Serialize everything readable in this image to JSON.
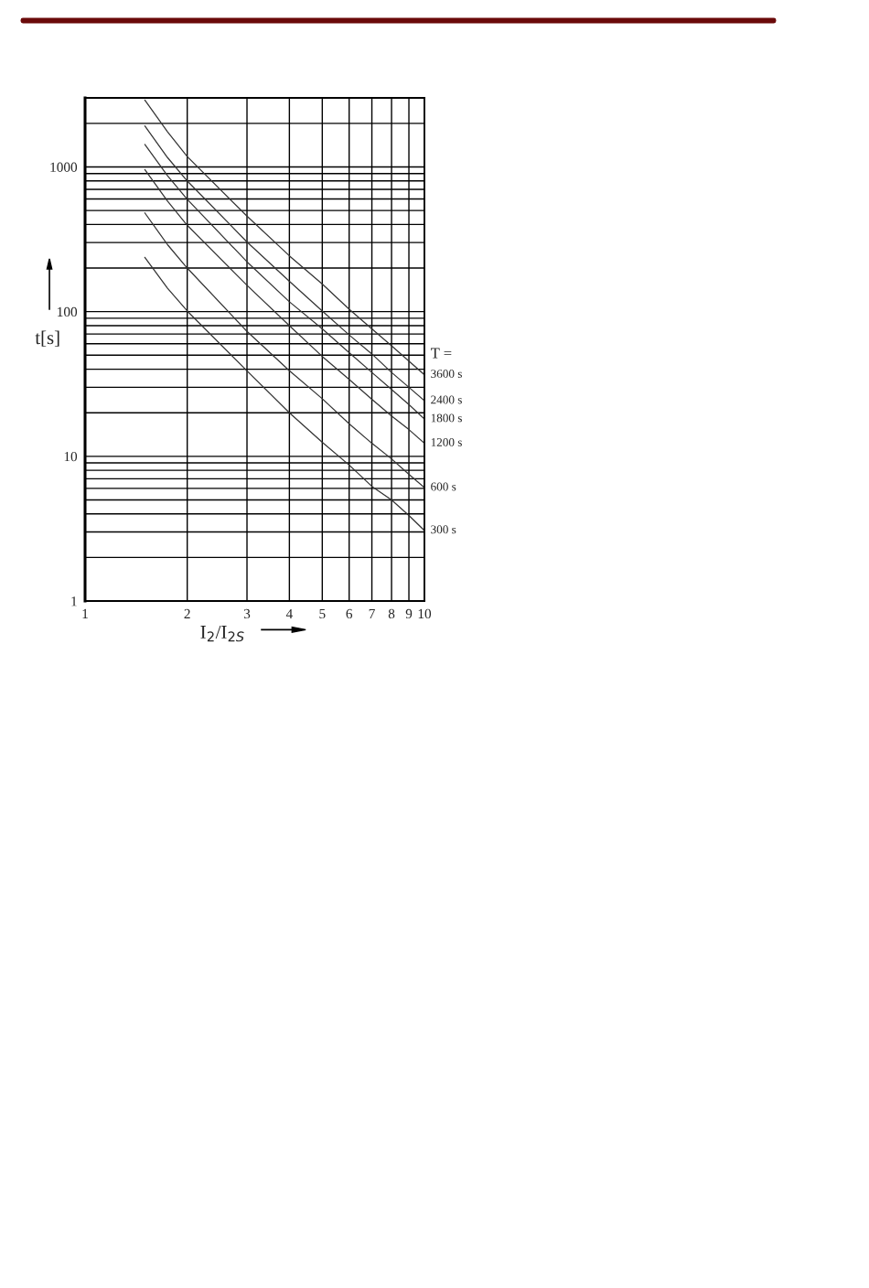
{
  "chart_data": {
    "type": "line",
    "xlabel": "I$_{2}$/I$_{2S}$",
    "ylabel": "t[s]",
    "annotations": [
      "T ="
    ],
    "log": "xy",
    "grid": true,
    "marker": "none",
    "line_style": "solid",
    "xlim": [
      1,
      10
    ],
    "xticks": [
      1,
      2,
      3,
      4,
      5,
      6,
      7,
      8,
      9,
      10
    ],
    "ylim": [
      1,
      3000
    ],
    "yticks": [
      1,
      {
        "value": 2,
        "label": null
      },
      {
        "value": 3,
        "label": null
      },
      {
        "value": 4,
        "label": null
      },
      {
        "value": 5,
        "label": null
      },
      {
        "value": 6,
        "label": null
      },
      {
        "value": 7,
        "label": null
      },
      {
        "value": 8,
        "label": null
      },
      {
        "value": 9,
        "label": null
      },
      10,
      {
        "value": 20,
        "label": null
      },
      {
        "value": 30,
        "label": null
      },
      {
        "value": 40,
        "label": null
      },
      {
        "value": 50,
        "label": null
      },
      {
        "value": 60,
        "label": null
      },
      {
        "value": 70,
        "label": null
      },
      {
        "value": 80,
        "label": null
      },
      {
        "value": 90,
        "label": null
      },
      100,
      {
        "value": 200,
        "label": null
      },
      {
        "value": 300,
        "label": null
      },
      {
        "value": 400,
        "label": null
      },
      {
        "value": 500,
        "label": null
      },
      {
        "value": 600,
        "label": null
      },
      {
        "value": 700,
        "label": null
      },
      {
        "value": 800,
        "label": null
      },
      {
        "value": 900,
        "label": null
      },
      1000,
      {
        "value": 2000,
        "label": null
      }
    ],
    "x": [
      1.5,
      1.75,
      2,
      3,
      4,
      5,
      6,
      7,
      8,
      9,
      10
    ],
    "series": [
      {
        "name": "3600 s",
        "color": "#333333",
        "values": [
          2900,
          1750,
          1180,
          457,
          243,
          155,
          104,
          76,
          58,
          45.5,
          36.6
        ]
      },
      {
        "name": "2400 s",
        "color": "#333333",
        "values": [
          1920,
          1160,
          800,
          303,
          162,
          101,
          69,
          51,
          38,
          30,
          24.2
        ]
      },
      {
        "name": "1800 s",
        "color": "#333333",
        "values": [
          1430,
          870,
          597,
          221,
          117,
          76,
          52,
          38,
          29,
          22.8,
          18.1
        ]
      },
      {
        "name": "1200 s",
        "color": "#333333",
        "values": [
          957,
          580,
          395,
          152,
          80,
          49,
          34,
          24.8,
          19,
          15.3,
          12.3
        ]
      },
      {
        "name": "600 s",
        "color": "#333333",
        "values": [
          481,
          290,
          200,
          73,
          39,
          25,
          16.8,
          12.3,
          9.6,
          7.5,
          6.07
        ]
      },
      {
        "name": "300 s",
        "color": "#333333",
        "values": [
          237,
          145,
          101,
          39,
          20,
          12.5,
          8.7,
          6.2,
          4.99,
          3.9,
          3.07
        ]
      }
    ]
  }
}
